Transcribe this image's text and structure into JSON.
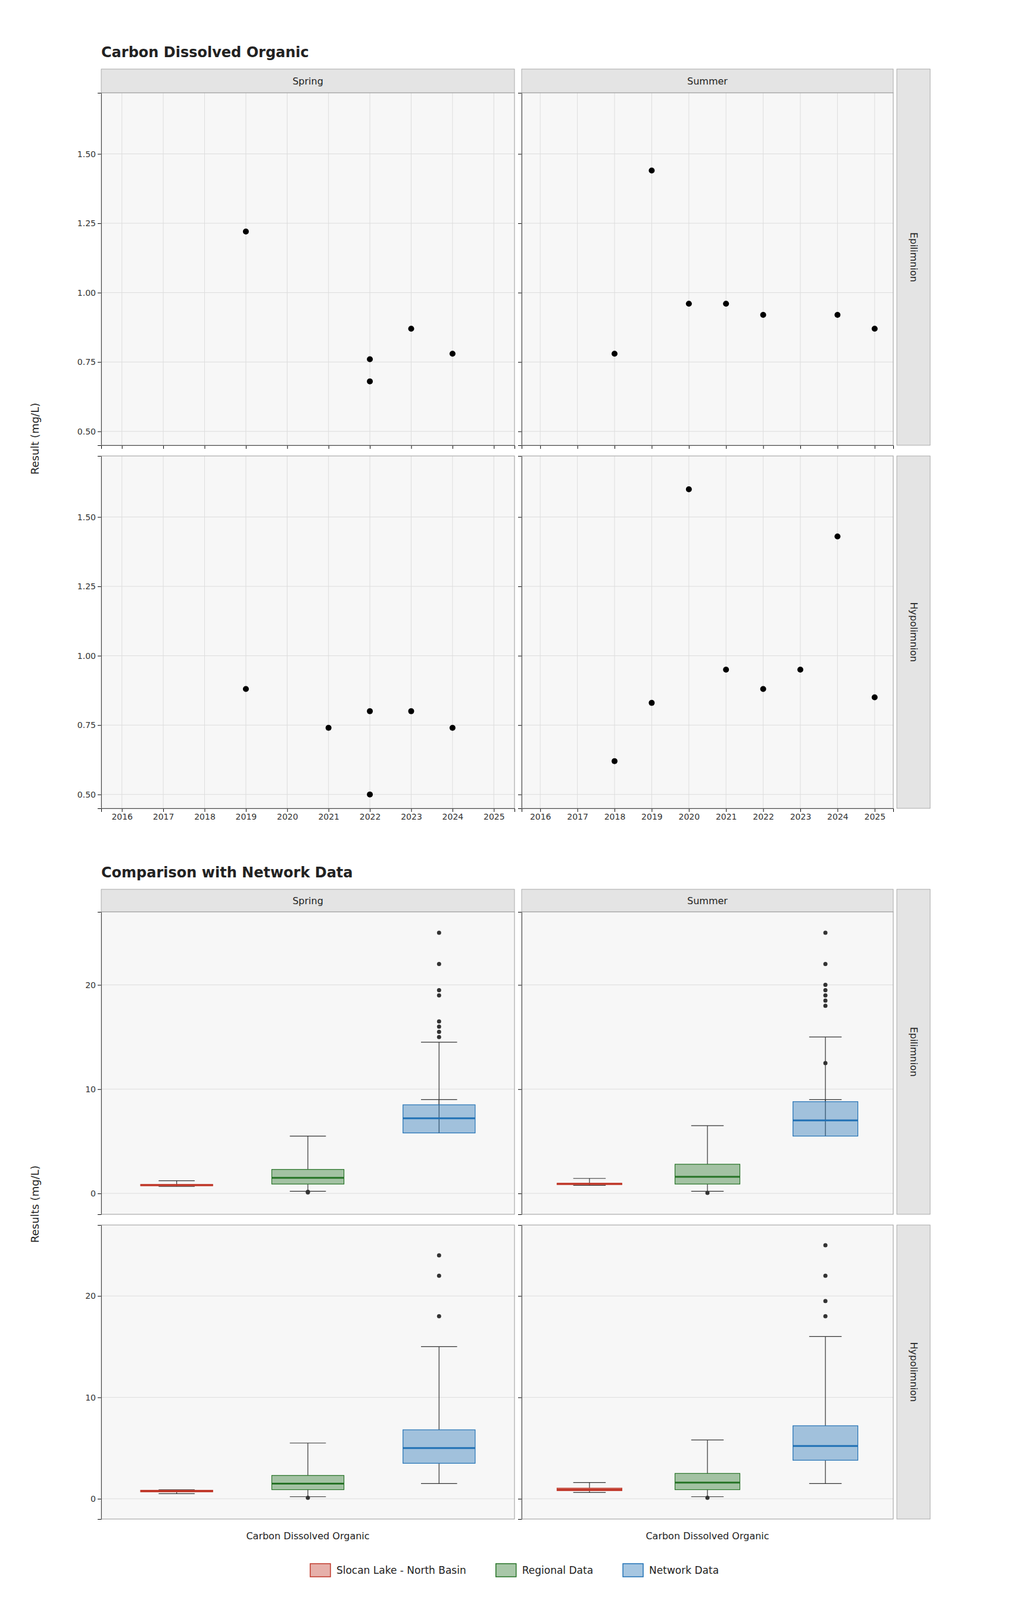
{
  "chart_data": [
    {
      "type": "scatter",
      "title": "Carbon Dissolved Organic",
      "ylabel": "Result (mg/L)",
      "columns": [
        "Spring",
        "Summer"
      ],
      "rows": [
        "Epilimnion",
        "Hypolimnion"
      ],
      "color": "black",
      "series": [
        {
          "x": [
            2019,
            2022,
            2022,
            2023,
            2024
          ],
          "values": [
            1.22,
            0.68,
            0.76,
            0.87,
            0.78
          ]
        },
        {
          "x": [
            2018,
            2019,
            2020,
            2021,
            2022,
            2024,
            2025
          ],
          "values": [
            0.78,
            1.44,
            0.96,
            0.96,
            0.92,
            0.92,
            0.87
          ]
        },
        {
          "x": [
            2019,
            2021,
            2022,
            2022,
            2023,
            2024
          ],
          "values": [
            0.88,
            0.74,
            0.5,
            0.8,
            0.8,
            0.74
          ]
        },
        {
          "x": [
            2018,
            2019,
            2020,
            2021,
            2022,
            2023,
            2024,
            2025
          ],
          "values": [
            0.62,
            0.83,
            1.6,
            0.95,
            0.88,
            0.95,
            1.43,
            0.85
          ]
        }
      ],
      "xlim": [
        2015.5,
        2025.5
      ],
      "xticks": [
        2016,
        2017,
        2018,
        2019,
        2020,
        2021,
        2022,
        2023,
        2024,
        2025
      ],
      "ylim": [
        0.45,
        1.72
      ],
      "yticks": [
        {
          "value": 0.5,
          "label": "0.50"
        },
        {
          "value": 0.75,
          "label": "0.75"
        },
        {
          "value": 1.0,
          "label": "1.00"
        },
        {
          "value": 1.25,
          "label": "1.25"
        },
        {
          "value": 1.5,
          "label": "1.50"
        }
      ],
      "grid": true
    },
    {
      "type": "box",
      "title": "Comparison with Network Data",
      "ylabel": "Results (mg/L)",
      "xlabel": "Carbon Dissolved Organic",
      "columns": [
        "Spring",
        "Summer"
      ],
      "rows": [
        "Epilimnion",
        "Hypolimnion"
      ],
      "series": [
        {
          "name": "Slocan Lake - North Basin",
          "color": "#c0392b",
          "values": [
            {
              "median": 0.8,
              "q1": 0.74,
              "q3": 0.86,
              "whislo": 0.68,
              "whishi": 1.22,
              "fliers": []
            },
            {
              "median": 0.93,
              "q1": 0.85,
              "q3": 0.97,
              "whislo": 0.78,
              "whishi": 1.44,
              "fliers": []
            },
            {
              "median": 0.77,
              "q1": 0.68,
              "q3": 0.84,
              "whislo": 0.5,
              "whishi": 0.88,
              "fliers": []
            },
            {
              "median": 0.9,
              "q1": 0.8,
              "q3": 1.05,
              "whislo": 0.62,
              "whishi": 1.6,
              "fliers": []
            }
          ]
        },
        {
          "name": "Regional Data",
          "color": "#267326",
          "values": [
            {
              "median": 1.5,
              "q1": 0.9,
              "q3": 2.3,
              "whislo": 0.2,
              "whishi": 5.5,
              "fliers": [
                0.1,
                0.15
              ]
            },
            {
              "median": 1.6,
              "q1": 0.9,
              "q3": 2.8,
              "whislo": 0.2,
              "whishi": 6.5,
              "fliers": [
                0.05
              ]
            },
            {
              "median": 1.5,
              "q1": 0.9,
              "q3": 2.3,
              "whislo": 0.2,
              "whishi": 5.5,
              "fliers": [
                0.1
              ]
            },
            {
              "median": 1.6,
              "q1": 0.9,
              "q3": 2.5,
              "whislo": 0.2,
              "whishi": 5.8,
              "fliers": [
                0.1
              ]
            }
          ]
        },
        {
          "name": "Network Data",
          "color": "#2171b5",
          "values": [
            {
              "median": 7.2,
              "q1": 5.8,
              "q3": 8.5,
              "whislo": 9.0,
              "whishi": 14.5,
              "fliers": [
                19.0,
                19.5,
                16.5,
                16.0,
                15.5,
                15.0,
                22.0,
                25.0
              ]
            },
            {
              "median": 7.0,
              "q1": 5.5,
              "q3": 8.8,
              "whislo": 9.0,
              "whishi": 15.0,
              "fliers": [
                18.5,
                19.5,
                19.0,
                12.5,
                25.0,
                22.0,
                20.0,
                18.0
              ]
            },
            {
              "median": 5.0,
              "q1": 3.5,
              "q3": 6.8,
              "whislo": 1.5,
              "whishi": 15.0,
              "fliers": [
                18.0,
                22.0,
                24.0
              ]
            },
            {
              "median": 5.2,
              "q1": 3.8,
              "q3": 7.2,
              "whislo": 1.5,
              "whishi": 16.0,
              "fliers": [
                18.0,
                19.5,
                22.0,
                25.0
              ]
            }
          ]
        }
      ],
      "ylim": [
        -2,
        27
      ],
      "yticks": [
        0,
        10,
        20
      ],
      "grid": "y",
      "tick_labels": "y"
    }
  ]
}
